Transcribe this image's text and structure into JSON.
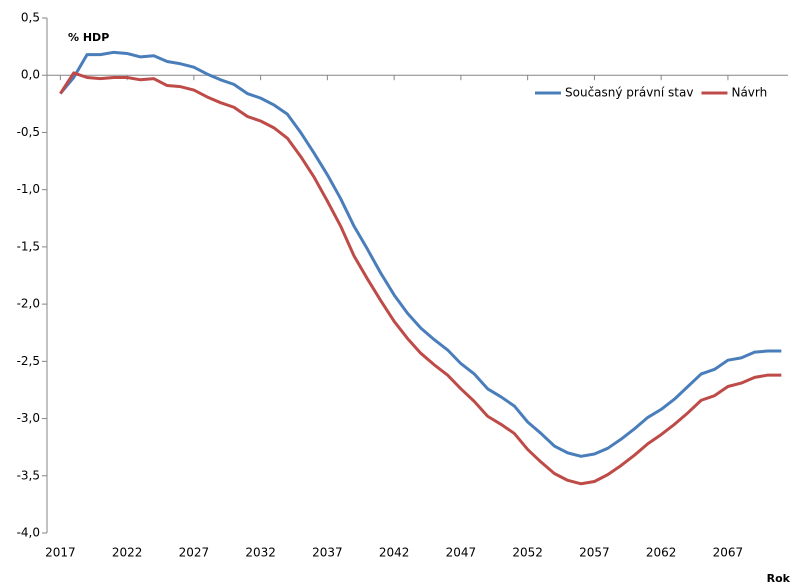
{
  "chart_data": {
    "type": "line",
    "y_label": "% HDP",
    "x_label": "Rok",
    "x": [
      2017,
      2018,
      2019,
      2020,
      2021,
      2022,
      2023,
      2024,
      2025,
      2026,
      2027,
      2028,
      2029,
      2030,
      2031,
      2032,
      2033,
      2034,
      2035,
      2036,
      2037,
      2038,
      2039,
      2040,
      2041,
      2042,
      2043,
      2044,
      2045,
      2046,
      2047,
      2048,
      2049,
      2050,
      2051,
      2052,
      2053,
      2054,
      2055,
      2056,
      2057,
      2058,
      2059,
      2060,
      2061,
      2062,
      2063,
      2064,
      2065,
      2066,
      2067,
      2068,
      2069,
      2070,
      2071
    ],
    "series": [
      {
        "name": "Současný právní stav",
        "color": "#4a7ebb",
        "values": [
          -0.16,
          -0.02,
          0.18,
          0.18,
          0.2,
          0.19,
          0.16,
          0.17,
          0.12,
          0.1,
          0.07,
          0.01,
          -0.04,
          -0.08,
          -0.16,
          -0.2,
          -0.26,
          -0.34,
          -0.5,
          -0.68,
          -0.87,
          -1.08,
          -1.32,
          -1.52,
          -1.73,
          -1.92,
          -2.08,
          -2.21,
          -2.31,
          -2.4,
          -2.52,
          -2.61,
          -2.74,
          -2.81,
          -2.89,
          -3.03,
          -3.13,
          -3.24,
          -3.3,
          -3.33,
          -3.31,
          -3.26,
          -3.18,
          -3.09,
          -2.99,
          -2.92,
          -2.83,
          -2.72,
          -2.61,
          -2.57,
          -2.49,
          -2.47,
          -2.42,
          -2.41,
          -2.41
        ]
      },
      {
        "name": "Návrh",
        "color": "#be4b48",
        "values": [
          -0.16,
          0.02,
          -0.02,
          -0.03,
          -0.02,
          -0.02,
          -0.04,
          -0.03,
          -0.09,
          -0.1,
          -0.13,
          -0.19,
          -0.24,
          -0.28,
          -0.36,
          -0.4,
          -0.46,
          -0.55,
          -0.71,
          -0.89,
          -1.1,
          -1.32,
          -1.58,
          -1.78,
          -1.97,
          -2.15,
          -2.3,
          -2.43,
          -2.53,
          -2.62,
          -2.74,
          -2.85,
          -2.98,
          -3.05,
          -3.13,
          -3.27,
          -3.38,
          -3.48,
          -3.54,
          -3.57,
          -3.55,
          -3.49,
          -3.41,
          -3.32,
          -3.22,
          -3.14,
          -3.05,
          -2.95,
          -2.84,
          -2.8,
          -2.72,
          -2.69,
          -2.64,
          -2.62,
          -2.62
        ]
      }
    ],
    "xlim": [
      2016,
      2071.5
    ],
    "xticks": [
      2017,
      2022,
      2027,
      2032,
      2037,
      2042,
      2047,
      2052,
      2057,
      2062,
      2067
    ],
    "ylim": [
      -4,
      0.5
    ],
    "yticks": [
      {
        "value": 0.5,
        "label": "0,5"
      },
      {
        "value": 0,
        "label": "0,0"
      },
      {
        "value": -0.5,
        "label": "-0,5"
      },
      {
        "value": -1,
        "label": "-1,0"
      },
      {
        "value": -1.5,
        "label": "-1,5"
      },
      {
        "value": -2,
        "label": "-2,0"
      },
      {
        "value": -2.5,
        "label": "-2,5"
      },
      {
        "value": -3,
        "label": "-3,0"
      },
      {
        "value": -3.5,
        "label": "-3,5"
      },
      {
        "value": -4,
        "label": "-4,0"
      }
    ],
    "grid": false,
    "legend": "top-right"
  }
}
